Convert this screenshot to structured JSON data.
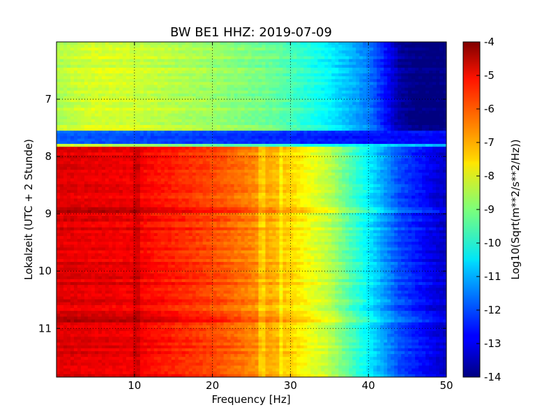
{
  "chart_data": {
    "type": "heatmap",
    "title": "BW BE1 HHZ: 2019-07-09",
    "xlabel": "Frequency [Hz]",
    "ylabel": "Lokalzeit (UTC + 2 Stunde)",
    "xlim": [
      0,
      50
    ],
    "ylim": [
      6.0,
      11.85
    ],
    "y_inverted": true,
    "x_ticks": [
      "10",
      "20",
      "30",
      "40",
      "50"
    ],
    "y_ticks": [
      "7",
      "8",
      "9",
      "10",
      "11"
    ],
    "grid": true,
    "colorbar": {
      "label": "Log10(Sqrt(m**2/s**2/Hz))",
      "range": [
        -14,
        -4
      ],
      "ticks": [
        "-4",
        "-5",
        "-6",
        "-7",
        "-8",
        "-9",
        "-10",
        "-11",
        "-12",
        "-13",
        "-14"
      ],
      "colormap": "jet"
    },
    "segments": [
      {
        "time_range": [
          6.0,
          7.55
        ],
        "profile": [
          [
            0,
            -8.5
          ],
          [
            5,
            -8.1
          ],
          [
            10,
            -8.2
          ],
          [
            20,
            -8.7
          ],
          [
            28,
            -9.2
          ],
          [
            35,
            -10.3
          ],
          [
            40,
            -11.5
          ],
          [
            42,
            -12.5
          ],
          [
            44,
            -13.6
          ],
          [
            46,
            -14
          ],
          [
            50,
            -14
          ]
        ]
      },
      {
        "time_range": [
          7.55,
          7.78
        ],
        "profile": [
          [
            0,
            -11.8
          ],
          [
            50,
            -12.8
          ]
        ]
      },
      {
        "time_range": [
          7.78,
          7.83
        ],
        "profile": [
          [
            0,
            -7.8
          ],
          [
            50,
            -10.8
          ]
        ]
      },
      {
        "time_range": [
          7.83,
          11.85
        ],
        "profile": [
          [
            0,
            -4.9
          ],
          [
            10,
            -5.1
          ],
          [
            20,
            -5.9
          ],
          [
            25,
            -6.5
          ],
          [
            30,
            -7.3
          ],
          [
            35,
            -8.4
          ],
          [
            40,
            -10.3
          ],
          [
            44,
            -12.0
          ],
          [
            50,
            -13.3
          ]
        ]
      }
    ],
    "features": [
      {
        "kind": "line",
        "frequency": 10,
        "delta": 0.35
      },
      {
        "kind": "line",
        "frequency": 26,
        "delta": -0.5
      },
      {
        "kind": "line",
        "frequency": 28.5,
        "delta": -0.5
      },
      {
        "kind": "band",
        "time": 8.95,
        "delta": 0.6
      },
      {
        "kind": "band",
        "time": 10.85,
        "delta": 0.6
      }
    ]
  }
}
